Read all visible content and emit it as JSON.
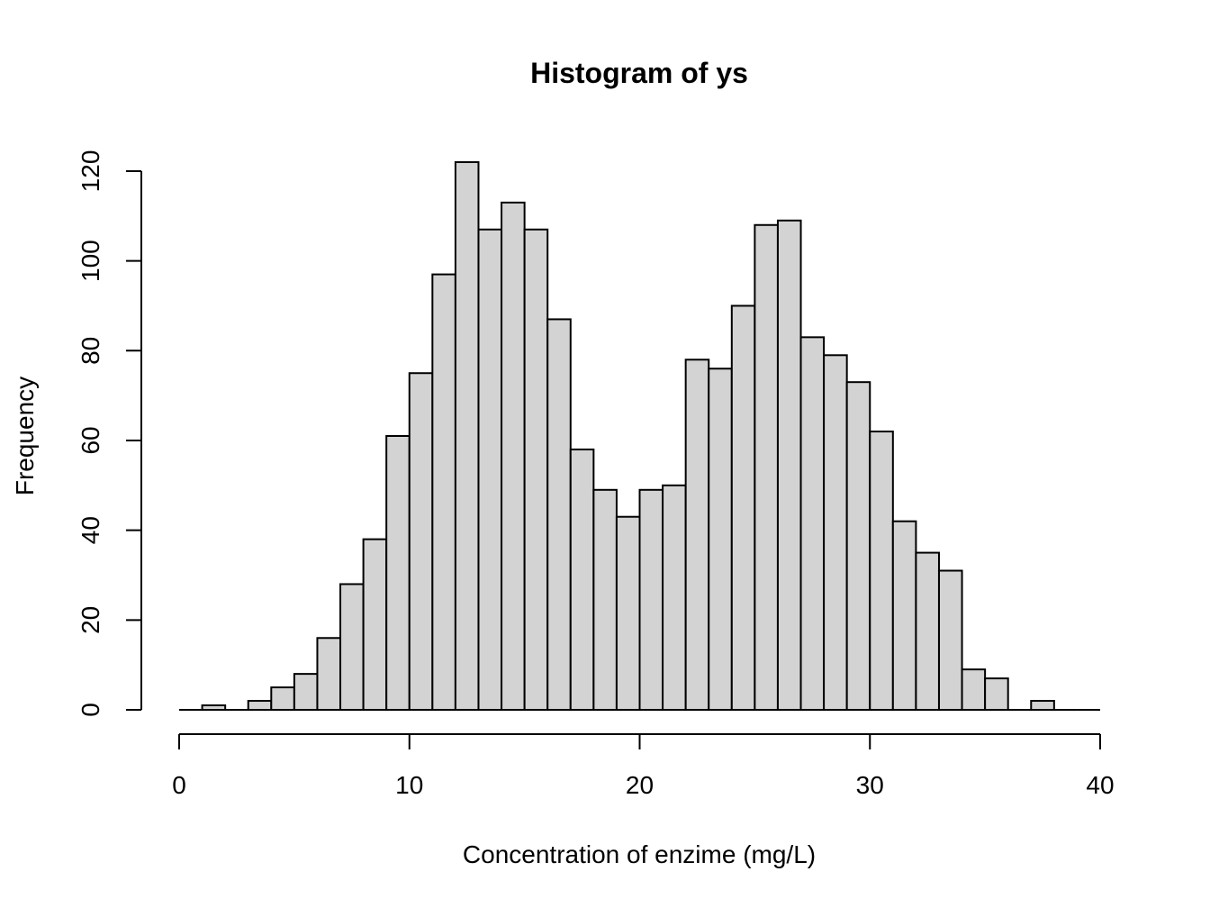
{
  "chart_data": {
    "type": "bar",
    "title": "Histogram of ys",
    "xlabel": "Concentration of enzime (mg/L)",
    "ylabel": "Frequency",
    "xlim": [
      0,
      40
    ],
    "ylim": [
      0,
      122
    ],
    "x_ticks": [
      0,
      10,
      20,
      30,
      40
    ],
    "y_ticks": [
      0,
      20,
      40,
      60,
      80,
      100,
      120
    ],
    "bin_width": 1,
    "bin_starts": [
      0,
      1,
      2,
      3,
      4,
      5,
      6,
      7,
      8,
      9,
      10,
      11,
      12,
      13,
      14,
      15,
      16,
      17,
      18,
      19,
      20,
      21,
      22,
      23,
      24,
      25,
      26,
      27,
      28,
      29,
      30,
      31,
      32,
      33,
      34,
      35,
      36,
      37,
      38,
      39
    ],
    "values": [
      0,
      1,
      0,
      2,
      5,
      8,
      16,
      28,
      38,
      61,
      75,
      97,
      122,
      107,
      113,
      107,
      87,
      58,
      49,
      43,
      49,
      50,
      78,
      76,
      90,
      108,
      109,
      83,
      79,
      73,
      62,
      42,
      35,
      31,
      9,
      7,
      0,
      2,
      0,
      0
    ],
    "bar_fill": "#d3d3d3",
    "bar_stroke": "#000000",
    "grid": false,
    "legend": "none"
  }
}
